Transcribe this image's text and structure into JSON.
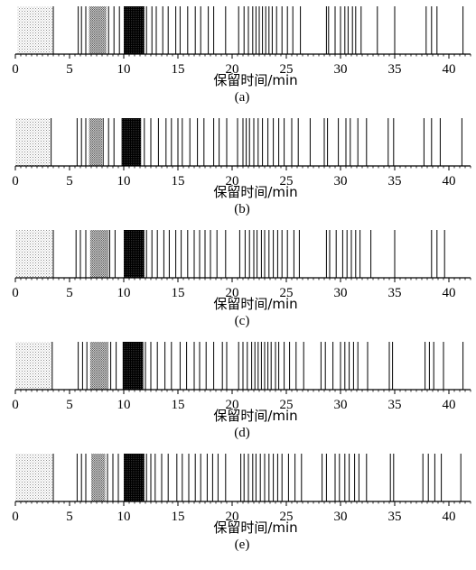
{
  "colors": {
    "line": "#000000",
    "dotted_light": "#b8b8b8",
    "dotted_mid": "#8a8a8a",
    "solid_dark": "#0a0a0a"
  },
  "chart_data": [
    {
      "type": "barcode",
      "panel_label": "(a)",
      "xlabel": "保留时间/min",
      "xlim": [
        0,
        42
      ],
      "xticks": [
        0,
        5,
        10,
        15,
        20,
        25,
        30,
        35,
        40
      ],
      "xtick_labels": [
        "0",
        "5",
        "10",
        "15",
        "20",
        "25",
        "30",
        "35",
        "40"
      ],
      "blocks": [
        {
          "from": 0.2,
          "to": 3.4,
          "shade": "light"
        },
        {
          "from": 6.8,
          "to": 8.4,
          "shade": "mid"
        },
        {
          "from": 10.0,
          "to": 11.9,
          "shade": "dark"
        }
      ],
      "lines": [
        3.5,
        5.8,
        6.1,
        6.5,
        8.6,
        9.1,
        9.6,
        12.1,
        12.6,
        13.0,
        13.6,
        14.1,
        14.8,
        15.2,
        15.9,
        16.6,
        17.1,
        17.8,
        18.3,
        19.4,
        20.6,
        21.1,
        21.5,
        21.9,
        22.2,
        22.5,
        22.8,
        23.1,
        23.4,
        23.7,
        24.1,
        24.6,
        25.1,
        25.6,
        26.3,
        28.7,
        28.9,
        29.5,
        30.0,
        30.4,
        30.7,
        31.1,
        31.4,
        31.9,
        33.4,
        35.0,
        37.9,
        38.4,
        38.9,
        41.3
      ]
    },
    {
      "type": "barcode",
      "panel_label": "(b)",
      "xlabel": "保留时间/min",
      "xlim": [
        0,
        42
      ],
      "xticks": [
        0,
        5,
        10,
        15,
        20,
        25,
        30,
        35,
        40
      ],
      "xtick_labels": [
        "0",
        "5",
        "10",
        "15",
        "20",
        "25",
        "30",
        "35",
        "40"
      ],
      "blocks": [
        {
          "from": 0.0,
          "to": 3.2,
          "shade": "light"
        },
        {
          "from": 6.8,
          "to": 8.0,
          "shade": "mid"
        },
        {
          "from": 9.8,
          "to": 11.6,
          "shade": "dark"
        }
      ],
      "lines": [
        3.3,
        5.7,
        6.1,
        6.5,
        8.1,
        8.6,
        9.1,
        11.9,
        12.5,
        13.2,
        13.9,
        14.4,
        15.0,
        15.4,
        16.1,
        16.8,
        17.4,
        18.3,
        18.8,
        19.5,
        20.5,
        21.0,
        21.3,
        21.6,
        22.0,
        22.4,
        22.8,
        23.3,
        23.8,
        24.3,
        24.8,
        25.5,
        26.1,
        27.2,
        28.5,
        28.8,
        29.8,
        30.5,
        30.9,
        31.6,
        32.4,
        34.4,
        34.9,
        37.7,
        38.4,
        39.2,
        41.2
      ]
    },
    {
      "type": "barcode",
      "panel_label": "(c)",
      "xlabel": "保留时间/min",
      "xlim": [
        0,
        42
      ],
      "xticks": [
        0,
        5,
        10,
        15,
        20,
        25,
        30,
        35,
        40
      ],
      "xtick_labels": [
        "0",
        "5",
        "10",
        "15",
        "20",
        "25",
        "30",
        "35",
        "40"
      ],
      "blocks": [
        {
          "from": 0.0,
          "to": 3.4,
          "shade": "light"
        },
        {
          "from": 6.9,
          "to": 8.6,
          "shade": "mid"
        },
        {
          "from": 10.0,
          "to": 11.9,
          "shade": "dark"
        }
      ],
      "lines": [
        3.5,
        5.6,
        6.0,
        6.5,
        8.7,
        9.2,
        12.1,
        12.6,
        13.1,
        13.7,
        14.2,
        14.8,
        15.3,
        15.9,
        16.5,
        17.0,
        17.5,
        18.0,
        18.6,
        19.4,
        20.7,
        21.2,
        21.6,
        22.0,
        22.3,
        22.7,
        23.0,
        23.4,
        23.8,
        24.2,
        24.6,
        25.1,
        25.7,
        26.2,
        28.7,
        29.0,
        29.6,
        30.2,
        30.6,
        31.0,
        31.4,
        31.8,
        32.8,
        35.0,
        38.4,
        38.9,
        39.6
      ]
    },
    {
      "type": "barcode",
      "panel_label": "(d)",
      "xlabel": "保留时间/min",
      "xlim": [
        0,
        42
      ],
      "xticks": [
        0,
        5,
        10,
        15,
        20,
        25,
        30,
        35,
        40
      ],
      "xtick_labels": [
        "0",
        "5",
        "10",
        "15",
        "20",
        "25",
        "30",
        "35",
        "40"
      ],
      "blocks": [
        {
          "from": 0.0,
          "to": 3.3,
          "shade": "light"
        },
        {
          "from": 6.9,
          "to": 8.6,
          "shade": "mid"
        },
        {
          "from": 9.9,
          "to": 11.8,
          "shade": "dark"
        }
      ],
      "lines": [
        3.4,
        5.8,
        6.2,
        6.6,
        8.8,
        9.3,
        12.0,
        12.5,
        13.1,
        13.8,
        14.4,
        15.2,
        15.8,
        16.5,
        17.0,
        17.6,
        18.3,
        19.1,
        19.5,
        20.6,
        21.0,
        21.4,
        21.8,
        22.1,
        22.4,
        22.7,
        23.0,
        23.3,
        23.6,
        24.0,
        24.3,
        24.8,
        25.3,
        25.9,
        26.6,
        28.2,
        28.6,
        29.3,
        30.0,
        30.4,
        30.8,
        31.2,
        31.6,
        32.5,
        34.5,
        34.8,
        37.8,
        38.2,
        38.6,
        39.5,
        41.3
      ]
    },
    {
      "type": "barcode",
      "panel_label": "(e)",
      "xlabel": "保留时间/min",
      "xlim": [
        0,
        42
      ],
      "xticks": [
        0,
        5,
        10,
        15,
        20,
        25,
        30,
        35,
        40
      ],
      "xtick_labels": [
        "0",
        "5",
        "10",
        "15",
        "20",
        "25",
        "30",
        "35",
        "40"
      ],
      "blocks": [
        {
          "from": 0.0,
          "to": 3.4,
          "shade": "light"
        },
        {
          "from": 7.0,
          "to": 8.3,
          "shade": "mid"
        },
        {
          "from": 10.0,
          "to": 11.9,
          "shade": "dark"
        }
      ],
      "lines": [
        3.5,
        5.7,
        6.1,
        6.5,
        8.5,
        9.0,
        9.5,
        12.1,
        12.5,
        12.9,
        13.5,
        14.1,
        14.9,
        15.4,
        16.0,
        16.6,
        17.1,
        17.7,
        18.2,
        18.7,
        19.4,
        20.8,
        21.1,
        21.5,
        21.9,
        22.2,
        22.6,
        23.0,
        23.4,
        23.8,
        24.2,
        24.6,
        25.2,
        25.8,
        26.4,
        28.3,
        28.7,
        29.5,
        29.9,
        30.4,
        30.8,
        31.3,
        31.7,
        32.4,
        34.6,
        34.9,
        37.6,
        38.1,
        38.7,
        39.3,
        41.1
      ]
    }
  ]
}
